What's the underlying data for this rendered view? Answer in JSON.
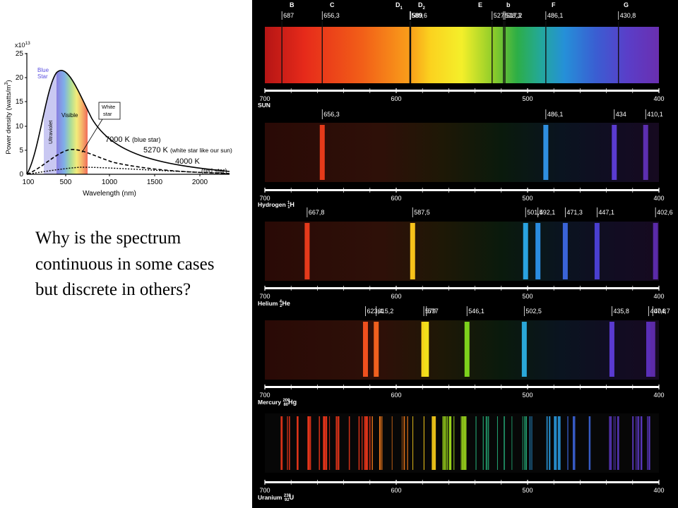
{
  "question": "Why is the spectrum continuous in some cases but discrete in others?",
  "blackbody": {
    "y_axis_label": "Power density (watts/m",
    "y_axis_sup": "3",
    "y_axis_close": ")",
    "x_axis_label": "Wavelength (nm)",
    "scale_prefix": "x10",
    "scale_exp": "13",
    "y_ticks": [
      "25",
      "20",
      "15",
      "10",
      "5",
      "0"
    ],
    "x_ticks": [
      "100",
      "500",
      "1000",
      "1500",
      "2000"
    ],
    "region_labels": {
      "blue_star_1": "Blue",
      "blue_star_2": "Star",
      "ultraviolet": "Ultraviolet",
      "visible": "Visible",
      "white_star_1": "White",
      "white_star_2": "star"
    },
    "curve_labels": {
      "k7000": "7000 K",
      "k7000_note": "(blue star)",
      "k5270": "5270 K",
      "k5270_note": "(white star like our sun)",
      "k4000": "4000 K",
      "k4000_note": "(red star)"
    }
  },
  "spectra": {
    "scale_ticks": [
      "700",
      "600",
      "500",
      "400"
    ],
    "sun": {
      "name": "SUN",
      "letters": [
        "B",
        "C",
        "D",
        "1",
        "D",
        "2",
        "E",
        "b",
        "F",
        "G"
      ],
      "lines": [
        {
          "label": "687",
          "wl": 687
        },
        {
          "label": "656,3",
          "wl": 656.3
        },
        {
          "label": "589,6",
          "wl": 589.6
        },
        {
          "label": "589",
          "wl": 589
        },
        {
          "label": "527",
          "wl": 527
        },
        {
          "label": "518,3",
          "wl": 518.3
        },
        {
          "label": "517,2",
          "wl": 517.2
        },
        {
          "label": "486,1",
          "wl": 486.1
        },
        {
          "label": "430,8",
          "wl": 430.8
        }
      ]
    },
    "hydrogen": {
      "name": "Hydrogen",
      "mass": "1",
      "z": "1",
      "symbol": "H",
      "lines": [
        {
          "label": "656,3",
          "wl": 656.3,
          "color": "#e53a1a"
        },
        {
          "label": "486,1",
          "wl": 486.1,
          "color": "#2f8fe0"
        },
        {
          "label": "434",
          "wl": 434,
          "color": "#5a3bd0"
        },
        {
          "label": "410,1",
          "wl": 410.1,
          "color": "#5c2fb0"
        }
      ]
    },
    "helium": {
      "name": "Helium",
      "mass": "4",
      "z": "2",
      "symbol": "He",
      "lines": [
        {
          "label": "667,8",
          "wl": 667.8,
          "color": "#e43a1b"
        },
        {
          "label": "587,5",
          "wl": 587.5,
          "color": "#f7c21a"
        },
        {
          "label": "501,5",
          "wl": 501.5,
          "color": "#2aa3e0"
        },
        {
          "label": "492,1",
          "wl": 492.1,
          "color": "#2a8de0"
        },
        {
          "label": "471,3",
          "wl": 471.3,
          "color": "#3a64d8"
        },
        {
          "label": "447,1",
          "wl": 447.1,
          "color": "#4a3fd0"
        },
        {
          "label": "402,6",
          "wl": 402.6,
          "color": "#5a2aa8"
        }
      ]
    },
    "mercury": {
      "name": "Mercury",
      "mass": "200",
      "z": "80",
      "symbol": "Hg",
      "lines": [
        {
          "label": "623,4",
          "wl": 623.4,
          "color": "#f0501e"
        },
        {
          "label": "615,2",
          "wl": 615.2,
          "color": "#f0601e"
        },
        {
          "label": "579",
          "wl": 579,
          "color": "#f6d21a"
        },
        {
          "label": "577",
          "wl": 577,
          "color": "#f2df1a"
        },
        {
          "label": "546,1",
          "wl": 546.1,
          "color": "#7dd21c"
        },
        {
          "label": "502,5",
          "wl": 502.5,
          "color": "#2aa8d8"
        },
        {
          "label": "435,8",
          "wl": 435.8,
          "color": "#5a3ad0"
        },
        {
          "label": "407,8",
          "wl": 407.8,
          "color": "#5a2fb8"
        },
        {
          "label": "404,7",
          "wl": 404.7,
          "color": "#5c2aa8"
        }
      ]
    },
    "uranium": {
      "name": "Uranium",
      "mass": "238",
      "z": "92",
      "symbol": "U"
    }
  }
}
